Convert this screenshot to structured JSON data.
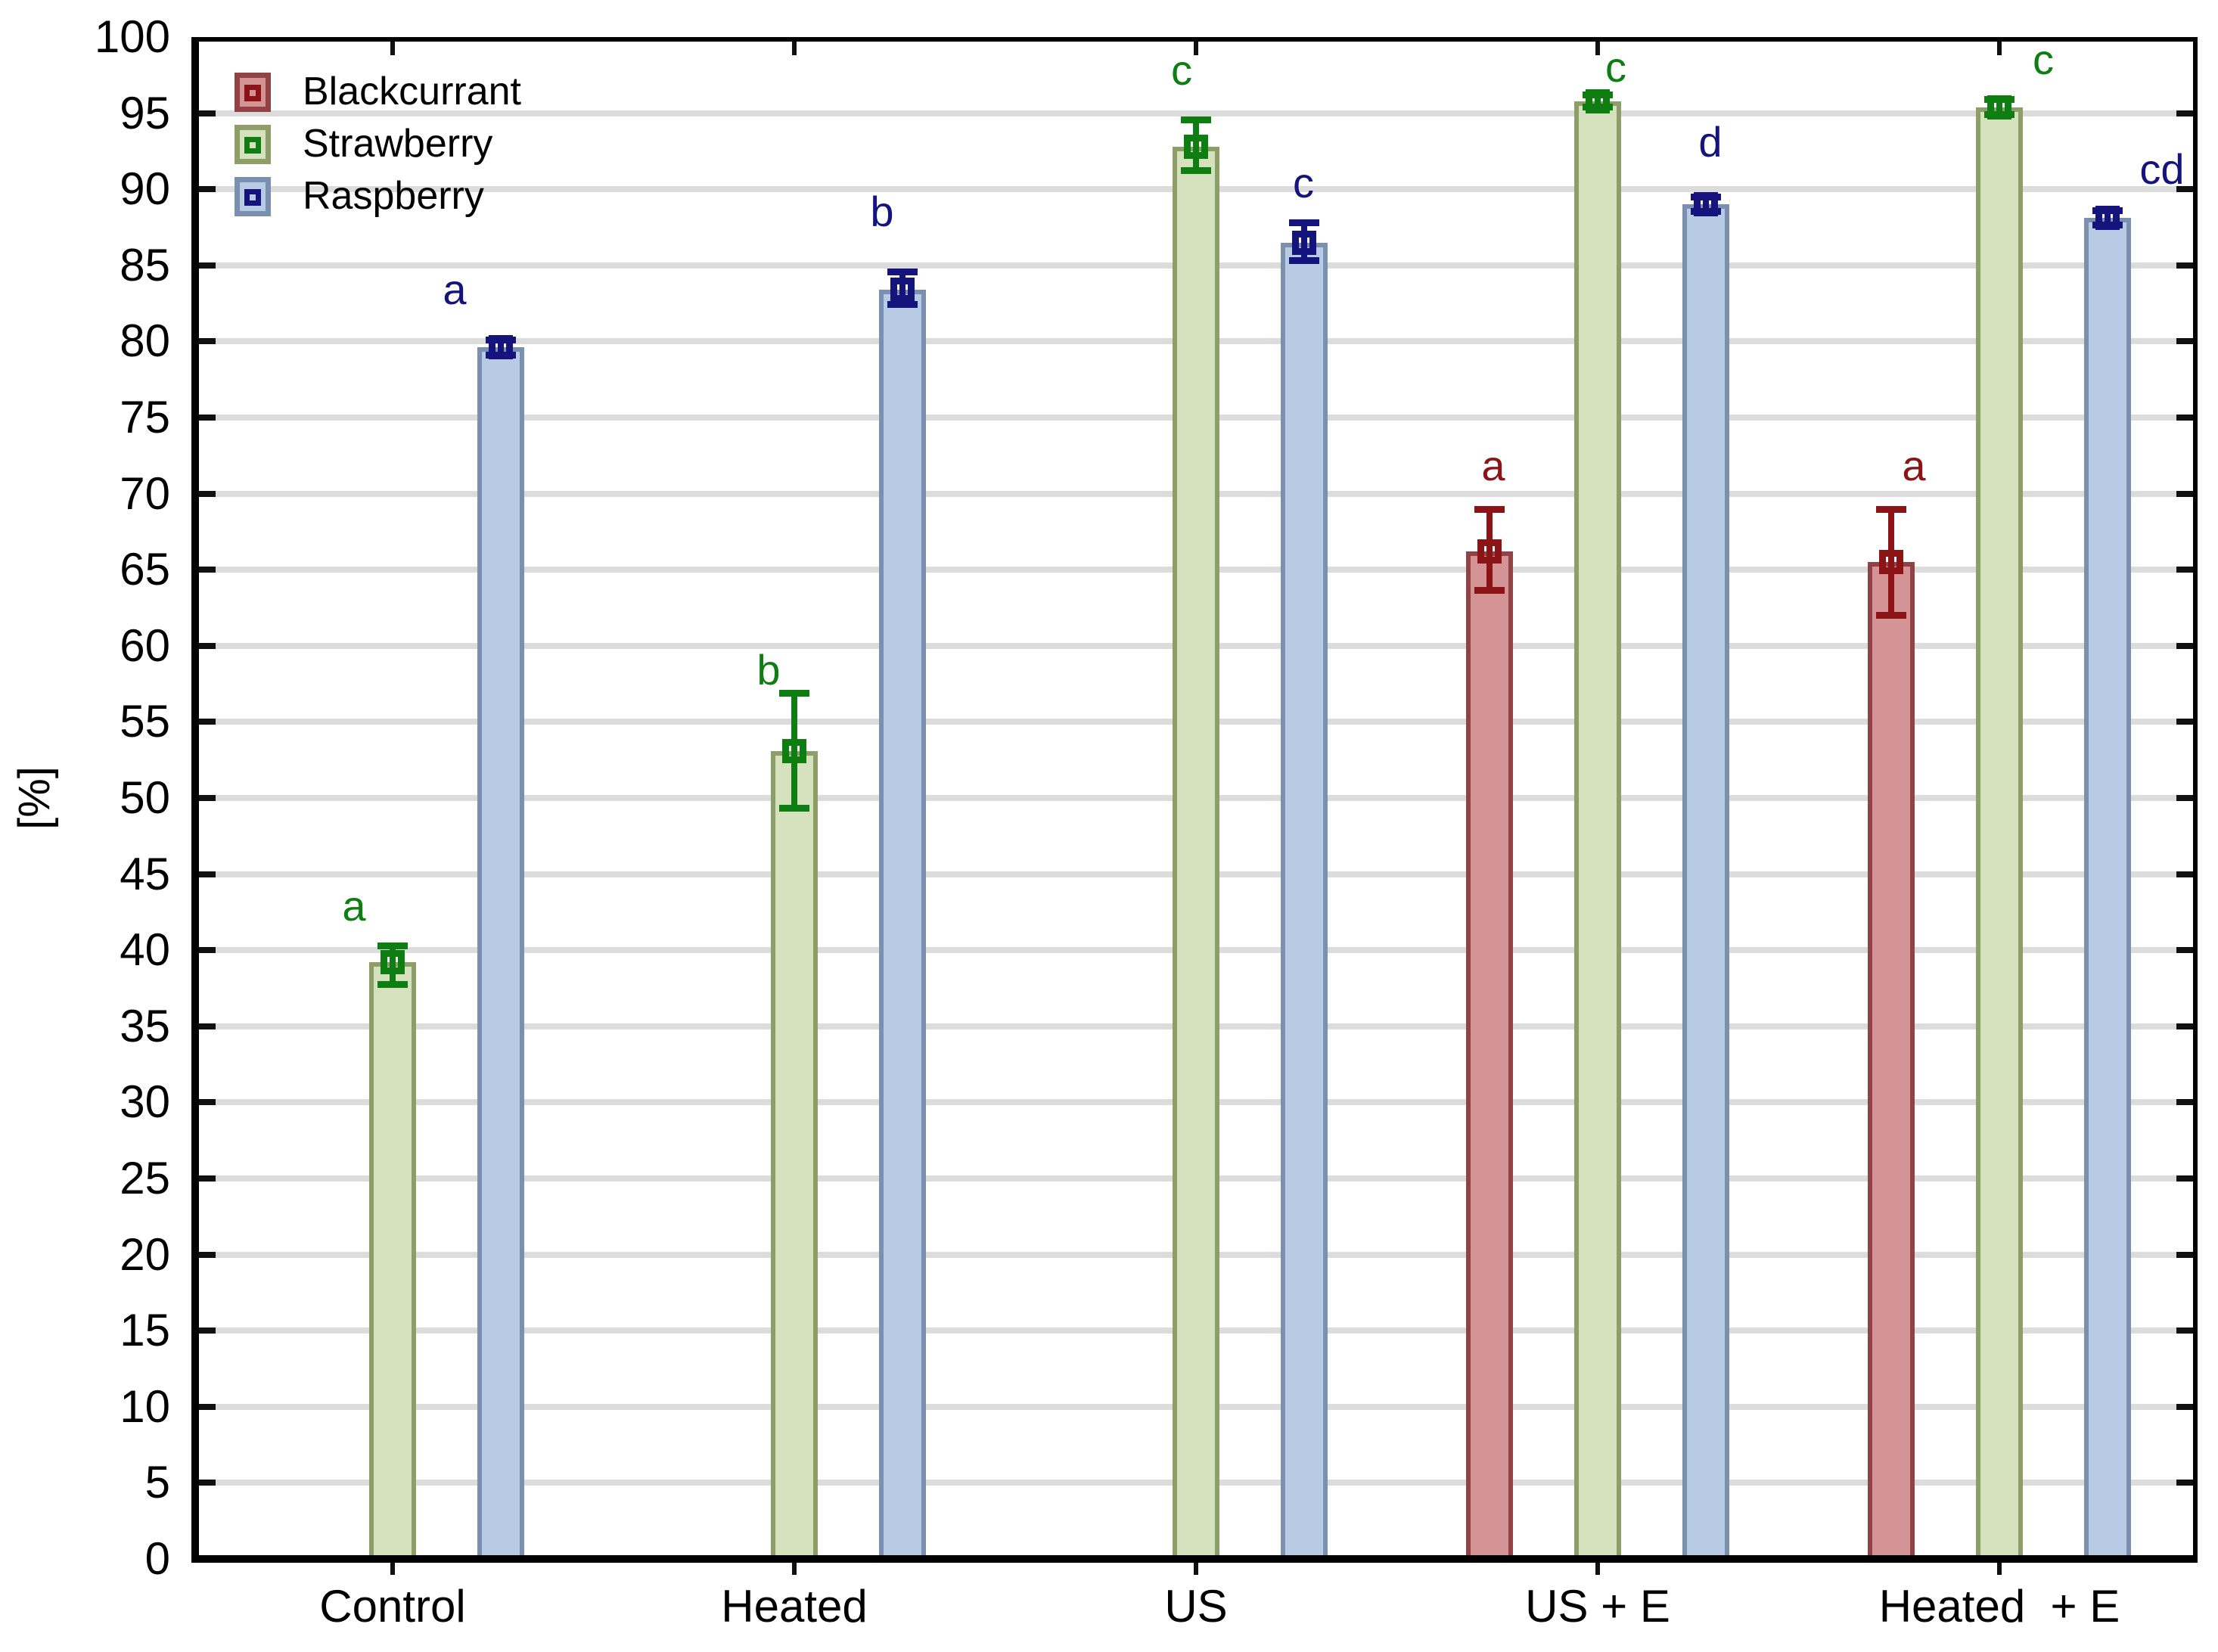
{
  "chart_data": {
    "type": "bar",
    "title": "",
    "ylabel": "[%]",
    "xlabel": "",
    "ylim": [
      0,
      100
    ],
    "ytick_step": 5,
    "grid": "horizontal gridlines every 5 units, light gray, plot framed by black box with inner ticks",
    "legend_position": "top-left inside plot",
    "categories": [
      "Control",
      "Heated",
      "US",
      "US + E",
      "Heated  + E"
    ],
    "series": [
      {
        "name": "Blackcurrant",
        "fill": "#d49394",
        "border": "#904244",
        "accent": "#8c1416",
        "values": [
          null,
          null,
          null,
          66.2,
          65.5
        ],
        "err_up": [
          null,
          null,
          null,
          2.8,
          3.5
        ],
        "err_down": [
          null,
          null,
          null,
          2.6,
          3.5
        ],
        "letters": [
          null,
          null,
          null,
          "a",
          "a"
        ],
        "letter_y": [
          null,
          null,
          null,
          71.8,
          71.8
        ],
        "letter_dx": [
          null,
          null,
          null,
          5,
          30
        ]
      },
      {
        "name": "Strawberry",
        "fill": "#d6e1bd",
        "border": "#8d9e68",
        "accent": "#0f7e12",
        "values": [
          39.2,
          53.1,
          92.8,
          95.8,
          95.4
        ],
        "err_up": [
          1.1,
          3.8,
          1.8,
          0.4,
          0.5
        ],
        "err_down": [
          1.5,
          3.8,
          1.6,
          0.4,
          0.5
        ],
        "letters": [
          "a",
          "b",
          "c",
          "c",
          "c"
        ],
        "letter_y": [
          42.9,
          58.4,
          97.8,
          98.0,
          98.5
        ],
        "letter_dx": [
          -51,
          -34,
          -19,
          24,
          58
        ]
      },
      {
        "name": "Raspberry",
        "fill": "#b7cbe4",
        "border": "#7b90ae",
        "accent": "#14147c",
        "values": [
          79.6,
          83.4,
          86.5,
          89.0,
          88.1
        ],
        "err_up": [
          0.5,
          1.2,
          1.3,
          0.5,
          0.5
        ],
        "err_down": [
          0.5,
          1.0,
          1.2,
          0.5,
          0.5
        ],
        "letters": [
          "a",
          "b",
          "c",
          "d",
          "cd"
        ],
        "letter_y": [
          83.4,
          88.5,
          90.4,
          93.1,
          91.3
        ],
        "letter_dx": [
          -61,
          -27,
          -1,
          6,
          72
        ]
      }
    ],
    "yticks": [
      0,
      5,
      10,
      15,
      20,
      25,
      30,
      35,
      40,
      45,
      50,
      55,
      60,
      65,
      70,
      75,
      80,
      85,
      90,
      95,
      100
    ],
    "error_bars": "whisker caps with open-square mean marker, colored per series",
    "annotations_note": "letters a/b/c/d/cd mark statistical significance groups, colored per series"
  }
}
